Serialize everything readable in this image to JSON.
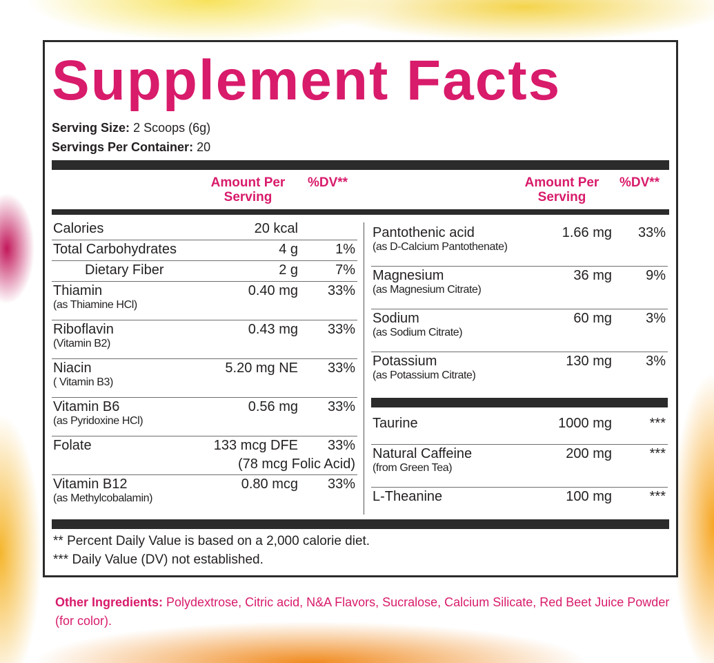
{
  "title": "Supplement Facts",
  "serving_size": {
    "label": "Serving Size:",
    "value": "2 Scoops (6g)"
  },
  "servings_per_container": {
    "label": "Servings Per Container:",
    "value": "20"
  },
  "columns": {
    "amount": "Amount Per Serving",
    "dv": "%DV**"
  },
  "left_rows": [
    {
      "name": "Calories",
      "amount": "20 kcal"
    },
    {
      "name": "Total Carbohydrates",
      "amount": "4 g",
      "dv": "1%"
    },
    {
      "name": "Dietary Fiber",
      "amount": "2 g",
      "dv": "7%",
      "indented": true
    },
    {
      "name": "Thiamin",
      "sub": "(as Thiamine HCl)",
      "amount": "0.40 mg",
      "dv": "33%"
    },
    {
      "name": "Riboflavin",
      "sub": "(Vitamin B2)",
      "amount": "0.43 mg",
      "dv": "33%"
    },
    {
      "name": "Niacin",
      "sub": "( Vitamin B3)",
      "amount": "5.20 mg NE",
      "dv": "33%"
    },
    {
      "name": "Vitamin B6",
      "sub": "(as Pyridoxine HCl)",
      "amount": "0.56 mg",
      "dv": "33%"
    },
    {
      "name": "Folate",
      "amount": "133 mcg DFE",
      "dv": "33%",
      "amount_note": "(78 mcg Folic Acid)"
    },
    {
      "name": "Vitamin B12",
      "sub": "(as Methylcobalamin)",
      "amount": "0.80 mcg",
      "dv": "33%"
    }
  ],
  "right_rows": [
    {
      "name": "Pantothenic acid",
      "sub": "(as D-Calcium Pantothenate)",
      "amount": "1.66 mg",
      "dv": "33%"
    },
    {
      "name": "Magnesium",
      "sub": "(as Magnesium Citrate)",
      "amount": "36 mg",
      "dv": "9%"
    },
    {
      "name": "Sodium",
      "sub": "(as Sodium Citrate)",
      "amount": "60 mg",
      "dv": "3%"
    },
    {
      "name": "Potassium",
      "sub": "(as Potassium Citrate)",
      "amount": "130 mg",
      "dv": "3%"
    }
  ],
  "right_other_rows": [
    {
      "name": "Taurine",
      "amount": "1000 mg",
      "dv": "***"
    },
    {
      "name": "Natural Caffeine",
      "sub": "(from Green Tea)",
      "amount": "200 mg",
      "dv": "***"
    },
    {
      "name": "L-Theanine",
      "amount": "100 mg",
      "dv": "***"
    }
  ],
  "footnotes": [
    "** Percent Daily Value is based on a 2,000 calorie diet.",
    "*** Daily Value (DV) not established."
  ],
  "other_ingredients": {
    "label": "Other Ingredients:",
    "text": "Polydextrose, Citric acid, N&A Flavors, Sucralose, Calcium Silicate, Red Beet Juice Powder (for color)."
  }
}
